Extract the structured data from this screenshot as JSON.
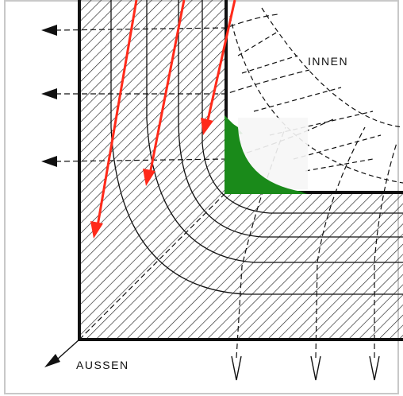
{
  "labels": {
    "inner": "INNEN",
    "outer": "AUSSEN"
  },
  "colors": {
    "wall_stroke": "#111111",
    "hatch": "#222222",
    "heat_flow_arrow": "#ff2a1a",
    "inner_corner_fill": "#1a8a1a",
    "background": "#ffffff",
    "frame": "#c8c8c8"
  },
  "legend_icons": [
    "heat-flow-arrow",
    "isotherm-line",
    "flux-line",
    "outward-arrow"
  ]
}
